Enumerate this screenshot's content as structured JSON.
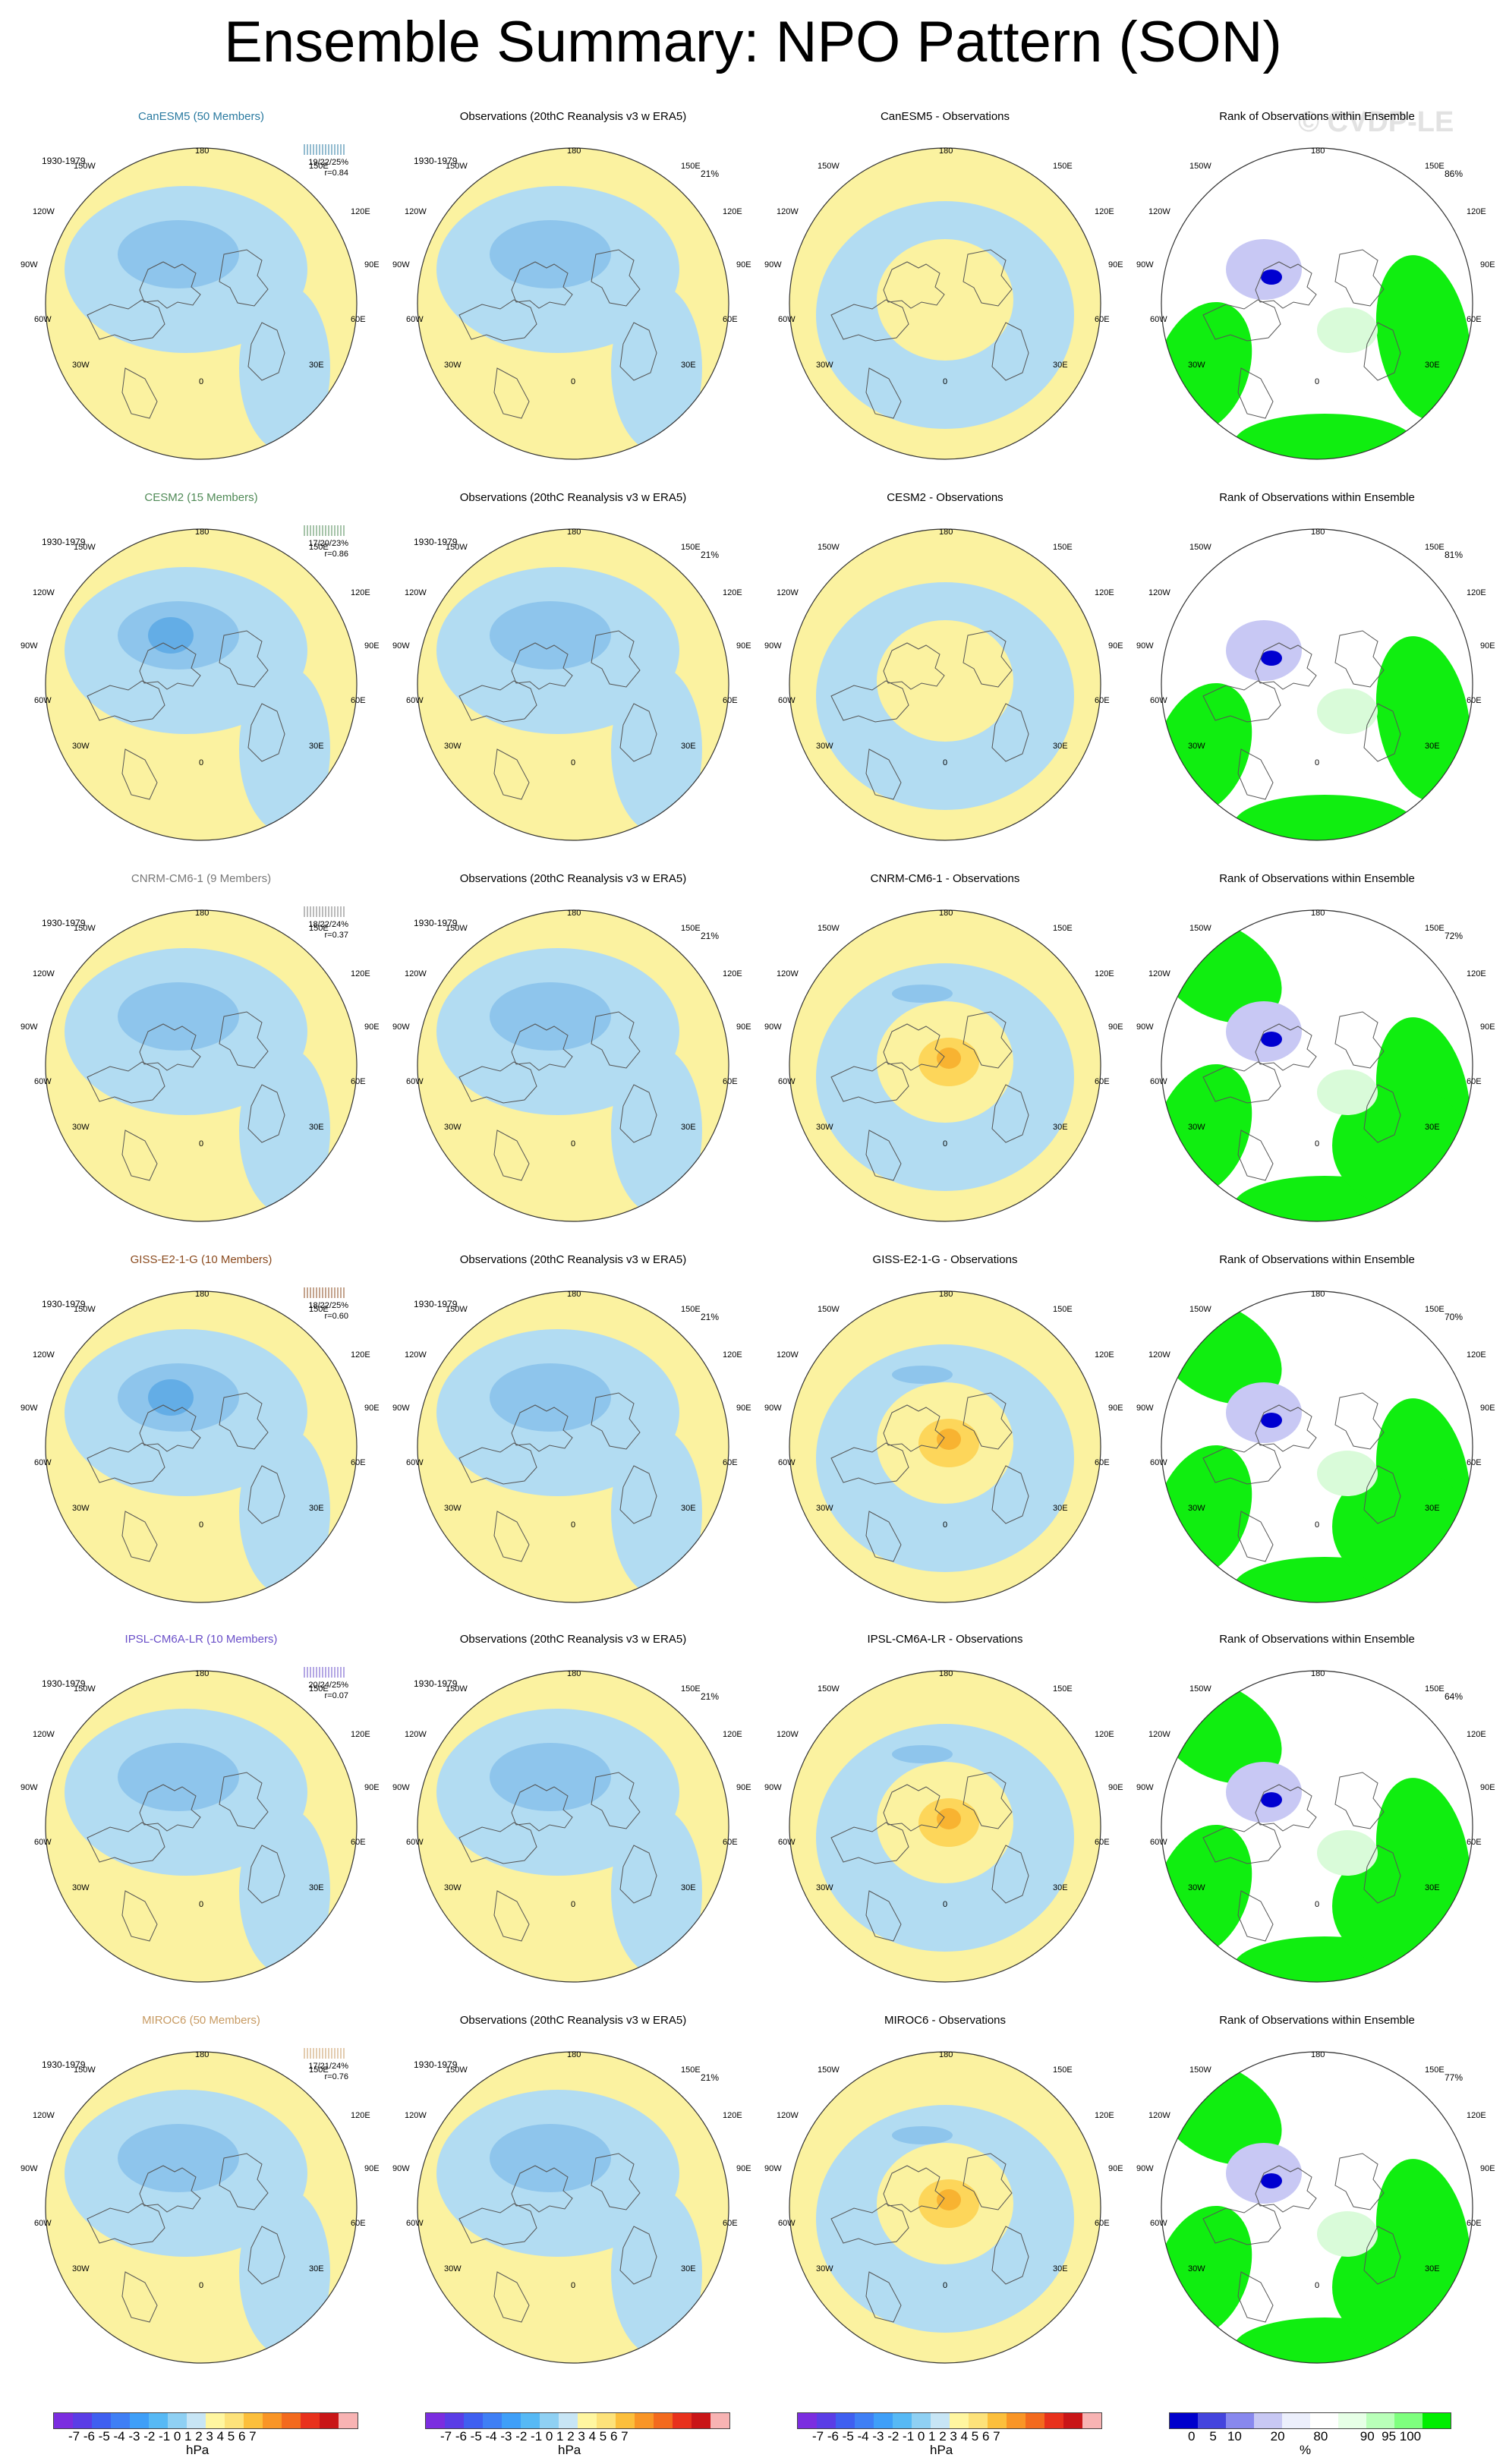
{
  "title": "Ensemble Summary: NPO Pattern (SON)",
  "watermark": "© CVDP-LE",
  "period": "1930-1979",
  "obs_title": "Observations (20thC Reanalysis v3 w ERA5)",
  "obs_pct": "21%",
  "rank_title": "Rank of Observations within Ensemble",
  "lon_labels": [
    "180",
    "150E",
    "120E",
    "90E",
    "60E",
    "30E",
    "0",
    "30W",
    "60W",
    "90W",
    "120W",
    "150W"
  ],
  "rows": [
    {
      "model": "CanESM5 (50 Members)",
      "color": "#2a7aa0",
      "stats": "19/22/25%",
      "r": "r=0.84",
      "diff_title": "CanESM5 - Observations",
      "rank_pct": "86%"
    },
    {
      "model": "CESM2 (15 Members)",
      "color": "#4f8a56",
      "stats": "17/20/23%",
      "r": "r=0.86",
      "diff_title": "CESM2 - Observations",
      "rank_pct": "81%"
    },
    {
      "model": "CNRM-CM6-1 (9 Members)",
      "color": "#777777",
      "stats": "18/22/24%",
      "r": "r=0.37",
      "diff_title": "CNRM-CM6-1 - Observations",
      "rank_pct": "72%"
    },
    {
      "model": "GISS-E2-1-G (10 Members)",
      "color": "#8a4a1e",
      "stats": "18/22/25%",
      "r": "r=0.60",
      "diff_title": "GISS-E2-1-G - Observations",
      "rank_pct": "70%"
    },
    {
      "model": "IPSL-CM6A-LR (10 Members)",
      "color": "#6a4fc8",
      "stats": "20/24/25%",
      "r": "r=0.07",
      "diff_title": "IPSL-CM6A-LR - Observations",
      "rank_pct": "64%"
    },
    {
      "model": "MIROC6 (50 Members)",
      "color": "#c79a62",
      "stats": "17/21/24%",
      "r": "r=0.76",
      "diff_title": "MIROC6 - Observations",
      "rank_pct": "77%"
    }
  ],
  "colorbar_hpa": {
    "ticks": "-7 -6 -5 -4 -3 -2 -1 0  1  2  3  4  5  6  7",
    "unit": "hPa",
    "colors": [
      "#7b2de0",
      "#5a3de6",
      "#3f5ff0",
      "#3f7ff5",
      "#3f9ff8",
      "#57b9f5",
      "#8fd0f3",
      "#c7e5f5",
      "#fff6a0",
      "#fde27a",
      "#fcbf3c",
      "#f99526",
      "#f36a1e",
      "#e8311c",
      "#c91517",
      "#f8b3b3"
    ]
  },
  "colorbar_rank": {
    "ticks": "0    5   10        20        80         90  95 100",
    "unit": "%",
    "colors": [
      "#0000cc",
      "#4444dd",
      "#8888ee",
      "#c8c8f4",
      "#eceffc",
      "#ffffff",
      "#e6ffe6",
      "#b9ffb9",
      "#7eff7e",
      "#00ee00"
    ]
  },
  "palette": {
    "yellow": "#fbf2a0",
    "lightblue": "#b2dcf2",
    "midblue": "#8ec5ec",
    "darkblue": "#63ade6",
    "orange": "#fdd65a",
    "darkorange": "#f8b331",
    "green": "#10ee10",
    "lightgreen": "#d9fbd9",
    "violet": "#c8c8f4",
    "navy": "#0000d0"
  }
}
